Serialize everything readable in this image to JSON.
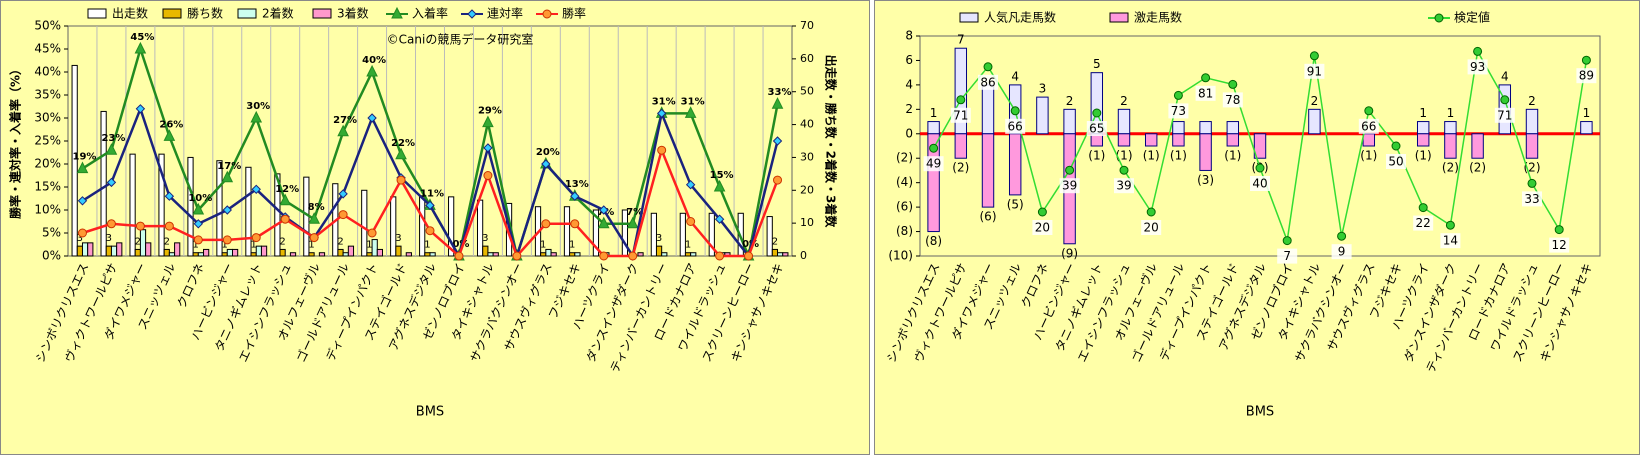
{
  "chart_data": [
    {
      "type": "bar-line",
      "annotation": "©Caniの競馬データ研究室",
      "xlabel": "BMS",
      "ylabel": "勝率・連対率・入着率（%）",
      "y2label": "出走数・勝ち数・2着数・3着数",
      "categories": [
        "シンボリクリスエス",
        "ヴィクトワールピサ",
        "ダイワメジャー",
        "スニッツェル",
        "クロフネ",
        "ハービンジャー",
        "タニノギムレット",
        "エイシンフラッシュ",
        "オルフェーヴル",
        "ゴールドアリュール",
        "ディープインパクト",
        "ステイゴールド",
        "アグネスデジタル",
        "ゼンノロブロイ",
        "タイキシャトル",
        "サクラバクシンオー",
        "サウスヴィグラス",
        "フジキセキ",
        "ハーツクライ",
        "ダンスインザダーク",
        "ティンバーカントリー",
        "ロードカナロア",
        "ワイルドラッシュ",
        "スクリーンヒーロー",
        "キンシャサノキセキ"
      ],
      "ylim": [
        0,
        50
      ],
      "yticks": [
        {
          "value": 0,
          "label": "0%"
        },
        {
          "value": 5,
          "label": "5%"
        },
        {
          "value": 10,
          "label": "10%"
        },
        {
          "value": 15,
          "label": "15%"
        },
        {
          "value": 20,
          "label": "20%"
        },
        {
          "value": 25,
          "label": "25%"
        },
        {
          "value": 30,
          "label": "30%"
        },
        {
          "value": 35,
          "label": "35%"
        },
        {
          "value": 40,
          "label": "40%"
        },
        {
          "value": 45,
          "label": "45%"
        },
        {
          "value": 50,
          "label": "50%"
        }
      ],
      "y2lim": [
        0,
        70
      ],
      "y2ticks": [
        0,
        10,
        20,
        30,
        40,
        50,
        60,
        70
      ],
      "grid": "x",
      "legend": "top",
      "series": [
        {
          "name": "出走数",
          "mark": "bar",
          "axis": "y2",
          "color": "#ffffff",
          "values": [
            58,
            44,
            31,
            31,
            30,
            29,
            27,
            25,
            24,
            22,
            20,
            18,
            18,
            18,
            17,
            16,
            15,
            15,
            14,
            14,
            13,
            13,
            13,
            13,
            12
          ]
        },
        {
          "name": "勝ち数",
          "mark": "bar",
          "axis": "y2",
          "color": "#e8b800",
          "values": [
            3,
            3,
            2,
            2,
            1,
            1,
            1,
            2,
            1,
            2,
            1,
            3,
            1,
            0,
            3,
            0,
            1,
            1,
            0,
            0,
            3,
            1,
            0,
            0,
            2
          ],
          "value_labels": [
            "3",
            "3",
            "2",
            "2",
            "1",
            "1",
            "1",
            "2",
            "1",
            "2",
            "1",
            "3",
            "1",
            null,
            "3",
            null,
            "1",
            "1",
            null,
            null,
            "3",
            "1",
            null,
            null,
            "2"
          ]
        },
        {
          "name": "2着数",
          "mark": "bar",
          "axis": "y2",
          "color": "#ccffee",
          "values": [
            4,
            3,
            8,
            1,
            1,
            2,
            3,
            0,
            0,
            1,
            5,
            0,
            1,
            0,
            1,
            0,
            2,
            1,
            1,
            0,
            1,
            1,
            1,
            0,
            1
          ]
        },
        {
          "name": "3着数",
          "mark": "bar",
          "axis": "y2",
          "color": "#ff99cc",
          "values": [
            4,
            4,
            4,
            4,
            2,
            2,
            3,
            1,
            1,
            3,
            2,
            1,
            0,
            0,
            1,
            0,
            1,
            0,
            0,
            1,
            0,
            0,
            1,
            0,
            1
          ]
        },
        {
          "name": "入着率",
          "mark": "line",
          "marker": "triangle",
          "color": "#228b22",
          "marker_fill": "#33aa33",
          "values": [
            19,
            23,
            45,
            26,
            10,
            17,
            30,
            12,
            8,
            27,
            40,
            22,
            11,
            0,
            29,
            0,
            20,
            13,
            7,
            7,
            31,
            31,
            15,
            0,
            33
          ],
          "value_labels": [
            "19%",
            "23%",
            "45%",
            "26%",
            "10%",
            "17%",
            "30%",
            "12%",
            "8%",
            "27%",
            "40%",
            "22%",
            "11%",
            "0%",
            "29%",
            null,
            "20%",
            "13%",
            "7%",
            "7%",
            "31%",
            "31%",
            "15%",
            "0%",
            "33%"
          ]
        },
        {
          "name": "連対率",
          "mark": "line",
          "marker": "diamond",
          "color": "#1a237e",
          "marker_fill": "#33ccff",
          "values": [
            12,
            16,
            32,
            13,
            7,
            10,
            14.5,
            8.5,
            4,
            13.5,
            30,
            17,
            11,
            0,
            23.5,
            0,
            20,
            13,
            10,
            0,
            31,
            15.5,
            8,
            0,
            25
          ]
        },
        {
          "name": "勝率",
          "mark": "line",
          "marker": "circle",
          "color": "#ff2020",
          "marker_fill": "#ff9933",
          "values": [
            5,
            7,
            6.5,
            6.5,
            3.5,
            3.5,
            4,
            8,
            4,
            9,
            5,
            16.5,
            5.5,
            0,
            17.5,
            0,
            7,
            7,
            0,
            0,
            23,
            7.5,
            0,
            0,
            16.5
          ]
        }
      ]
    },
    {
      "type": "diverging-bar-line",
      "xlabel": "BMS",
      "categories": [
        "シンボリクリスエス",
        "ヴィクトワールピサ",
        "ダイワメジャー",
        "スニッツェル",
        "クロフネ",
        "ハービンジャー",
        "タニノギムレット",
        "エイシンフラッシュ",
        "オルフェーヴル",
        "ゴールドアリュール",
        "ディープインパクト",
        "ステイゴールド",
        "アグネスデジタル",
        "ゼンノロブロイ",
        "タイキシャトル",
        "サクラバクシンオー",
        "サウスヴィグラス",
        "フジキセキ",
        "ハーツクライ",
        "ダンスインザダーク",
        "ティンバーカントリー",
        "ロードカナロア",
        "ワイルドラッシュ",
        "スクリーンヒーロー",
        "キンシャサノキセキ"
      ],
      "ylim": [
        -10,
        8
      ],
      "yticks": [
        {
          "value": -10,
          "label": "(10)"
        },
        {
          "value": -8,
          "label": "(8)"
        },
        {
          "value": -6,
          "label": "(6)"
        },
        {
          "value": -4,
          "label": "(4)"
        },
        {
          "value": -2,
          "label": "(2)"
        },
        0,
        2,
        4,
        6,
        8
      ],
      "y2lim": [
        0,
        100
      ],
      "zero_line_color": "#ff0000",
      "negative_color": "#ff0000",
      "legend": "top",
      "series": [
        {
          "name": "人気凡走馬数",
          "mark": "bar",
          "color": "#e6e6ff",
          "values": [
            1,
            7,
            4,
            4,
            3,
            2,
            5,
            2,
            0,
            1,
            1,
            1,
            0,
            0,
            2,
            0,
            0,
            0,
            1,
            1,
            0,
            4,
            2,
            0,
            1
          ],
          "value_labels": [
            "1",
            "7",
            null,
            "4",
            "3",
            "2",
            "5",
            "2",
            null,
            null,
            null,
            null,
            null,
            null,
            "2",
            null,
            null,
            null,
            "1",
            "1",
            null,
            "4",
            "2",
            null,
            "1"
          ]
        },
        {
          "name": "激走馬数",
          "mark": "bar",
          "color": "#ff99dd",
          "values": [
            -8,
            -2,
            -6,
            -5,
            0,
            -9,
            -1,
            -1,
            -1,
            -1,
            -3,
            -1,
            -2,
            0,
            0,
            0,
            -1,
            0,
            -1,
            -2,
            -2,
            0,
            -2,
            0,
            0
          ],
          "value_labels": [
            "(8)",
            "(2)",
            "(6)",
            "(5)",
            null,
            "(9)",
            "(1)",
            "(1)",
            "(1)",
            "(1)",
            "(3)",
            "(1)",
            "(2)",
            null,
            null,
            null,
            "(1)",
            null,
            "(1)",
            "(2)",
            "(2)",
            null,
            "(2)",
            null,
            null
          ]
        },
        {
          "name": "検定値",
          "mark": "line",
          "marker": "circle",
          "axis": "y2",
          "color": "#33dd33",
          "marker_fill": "#33cc33",
          "show_values": true,
          "values": [
            49,
            71,
            86,
            66,
            20,
            39,
            65,
            39,
            20,
            73,
            81,
            78,
            40,
            7,
            91,
            9,
            66,
            50,
            22,
            14,
            93,
            71,
            33,
            12,
            89
          ]
        }
      ]
    }
  ]
}
